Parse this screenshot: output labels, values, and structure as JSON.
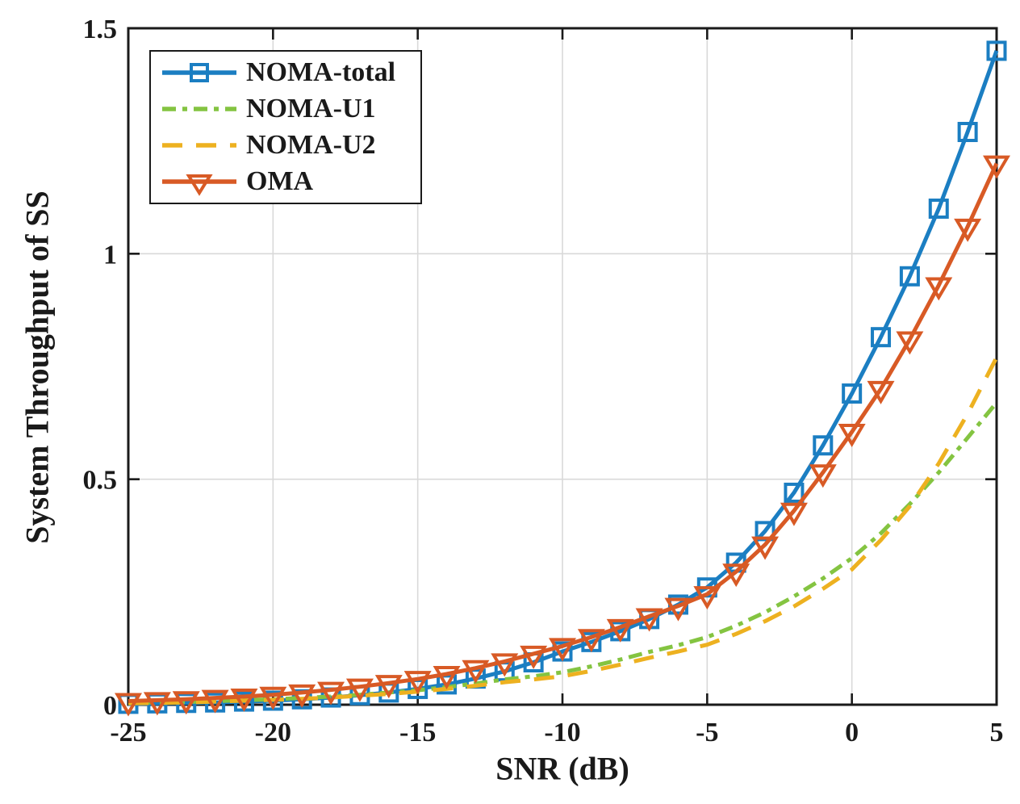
{
  "chart_data": {
    "type": "line",
    "xlabel": "SNR (dB)",
    "ylabel": "System Throughput of SS",
    "xlim": [
      -25,
      5
    ],
    "ylim": [
      0,
      1.5
    ],
    "xticks": [
      -25,
      -20,
      -15,
      -10,
      -5,
      0,
      5
    ],
    "xtick_labels": [
      "-25",
      "-20",
      "-15",
      "-10",
      "-5",
      "0",
      "5"
    ],
    "yticks": [
      0,
      0.5,
      1,
      1.5
    ],
    "ytick_labels": [
      "0",
      "0.5",
      "1",
      "1.5"
    ],
    "grid": true,
    "grid_color": "#d9d9d9",
    "axis_color": "#1a1a1a",
    "legend_position": "top-left",
    "x": [
      -25,
      -24,
      -23,
      -22,
      -21,
      -20,
      -19,
      -18,
      -17,
      -16,
      -15,
      -14,
      -13,
      -12,
      -11,
      -10,
      -9,
      -8,
      -7,
      -6,
      -5,
      -4,
      -3,
      -2,
      -1,
      0,
      1,
      2,
      3,
      4,
      5
    ],
    "series": [
      {
        "name": "NOMA-total",
        "color": "#1b7ec2",
        "style": "solid",
        "marker": "square",
        "values": [
          0.002,
          0.003,
          0.004,
          0.005,
          0.007,
          0.009,
          0.012,
          0.016,
          0.021,
          0.027,
          0.035,
          0.045,
          0.058,
          0.074,
          0.094,
          0.118,
          0.139,
          0.163,
          0.19,
          0.222,
          0.26,
          0.315,
          0.385,
          0.47,
          0.575,
          0.69,
          0.815,
          0.95,
          1.1,
          1.27,
          1.45
        ]
      },
      {
        "name": "NOMA-U1",
        "color": "#84c441",
        "style": "dashdot",
        "marker": "none",
        "values": [
          0.004,
          0.005,
          0.006,
          0.008,
          0.01,
          0.012,
          0.015,
          0.018,
          0.022,
          0.027,
          0.032,
          0.039,
          0.047,
          0.056,
          0.063,
          0.072,
          0.085,
          0.1,
          0.117,
          0.132,
          0.15,
          0.175,
          0.205,
          0.24,
          0.28,
          0.325,
          0.38,
          0.445,
          0.515,
          0.592,
          0.67
        ]
      },
      {
        "name": "NOMA-U2",
        "color": "#edb120",
        "style": "dashed",
        "marker": "none",
        "values": [
          0.003,
          0.004,
          0.005,
          0.007,
          0.009,
          0.011,
          0.013,
          0.016,
          0.02,
          0.024,
          0.029,
          0.035,
          0.042,
          0.05,
          0.056,
          0.063,
          0.075,
          0.089,
          0.104,
          0.118,
          0.133,
          0.157,
          0.185,
          0.218,
          0.257,
          0.3,
          0.365,
          0.44,
          0.535,
          0.645,
          0.77
        ]
      },
      {
        "name": "OMA",
        "color": "#d85a25",
        "style": "solid",
        "marker": "triangle-down",
        "values": [
          0.008,
          0.01,
          0.012,
          0.015,
          0.018,
          0.022,
          0.027,
          0.033,
          0.04,
          0.048,
          0.057,
          0.068,
          0.081,
          0.096,
          0.113,
          0.13,
          0.15,
          0.172,
          0.196,
          0.219,
          0.245,
          0.295,
          0.355,
          0.43,
          0.515,
          0.605,
          0.7,
          0.81,
          0.93,
          1.06,
          1.2
        ]
      }
    ]
  }
}
